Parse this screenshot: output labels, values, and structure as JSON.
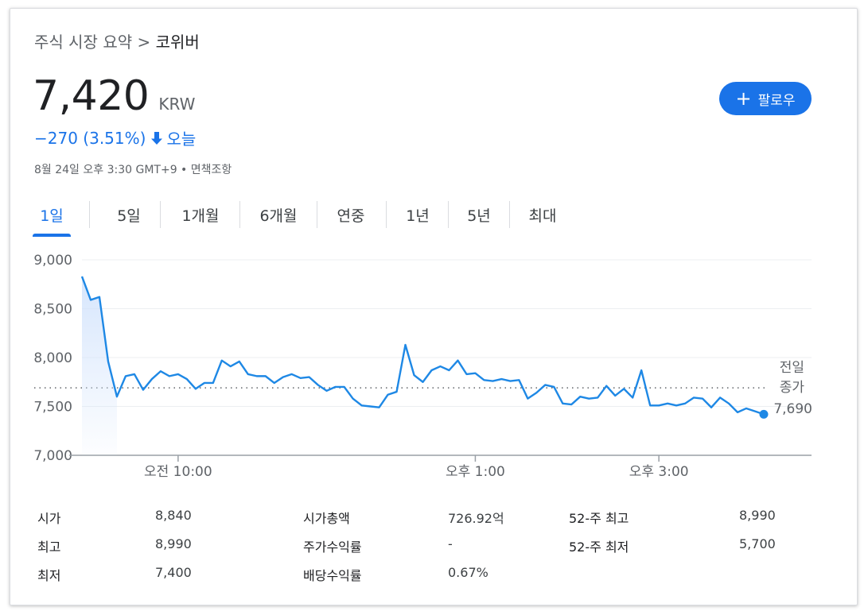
{
  "breadcrumb": {
    "parent": "주식 시장 요약",
    "separator": ">",
    "current": "코위버"
  },
  "quote": {
    "price": "7,420",
    "currency": "KRW",
    "change": "−270 (3.51%)",
    "change_period": "오늘",
    "timestamp": "8월 24일 오후 3:30 GMT+9 • 면책조항"
  },
  "follow_button": {
    "label": "팔로우"
  },
  "tabs": [
    "1일",
    "5일",
    "1개월",
    "6개월",
    "연중",
    "1년",
    "5년",
    "최대"
  ],
  "active_tab": "1일",
  "colors": {
    "accent": "#1a73e8",
    "line": "#1e88e5",
    "fill": "#d2e3fc"
  },
  "chart_data": {
    "type": "line",
    "series": [
      {
        "values": [
          8830,
          8590,
          8620,
          7960,
          7600,
          7810,
          7830,
          7670,
          7780,
          7860,
          7810,
          7830,
          7780,
          7680,
          7740,
          7740,
          7970,
          7910,
          7960,
          7830,
          7810,
          7810,
          7740,
          7800,
          7830,
          7790,
          7800,
          7720,
          7660,
          7700,
          7700,
          7580,
          7510,
          7500,
          7490,
          7620,
          7650,
          8130,
          7820,
          7750,
          7870,
          7910,
          7870,
          7970,
          7830,
          7840,
          7770,
          7760,
          7780,
          7760,
          7770,
          7580,
          7640,
          7720,
          7700,
          7530,
          7520,
          7600,
          7580,
          7590,
          7710,
          7610,
          7680,
          7590,
          7870,
          7510,
          7510,
          7530,
          7510,
          7530,
          7590,
          7580,
          7490,
          7590,
          7530,
          7440,
          7480,
          7450,
          7420
        ]
      }
    ],
    "ylim": [
      7000,
      9000
    ],
    "y_ticks": [
      "9,000",
      "8,500",
      "8,000",
      "7,500",
      "7,000"
    ],
    "y_tick_values": [
      9000,
      8500,
      8000,
      7500,
      7000
    ],
    "x_ticks": [
      "오전 10:00",
      "오후 1:00",
      "오후 3:00"
    ],
    "x_tick_index": [
      11,
      45,
      66
    ],
    "prev_close_value": 7690,
    "prev_close_label_1": "전일",
    "prev_close_label_2": "종가",
    "prev_close_text": "7,690",
    "grid": true
  },
  "stats": {
    "open_label": "시가",
    "open_value": "8,840",
    "high_label": "최고",
    "high_value": "8,990",
    "low_label": "최저",
    "low_value": "7,400",
    "mktcap_label": "시가총액",
    "mktcap_value": "726.92억",
    "pe_label": "주가수익률",
    "pe_value": "-",
    "div_label": "배당수익률",
    "div_value": "0.67%",
    "high52_label": "52-주 최고",
    "high52_value": "8,990",
    "low52_label": "52-주 최저",
    "low52_value": "5,700"
  }
}
